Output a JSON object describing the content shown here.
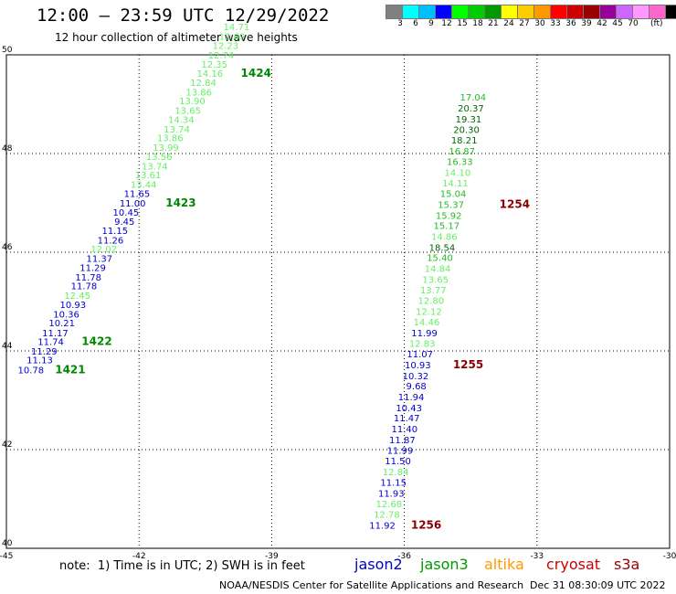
{
  "header": {
    "title": "12:00 – 23:59 UTC 12/29/2022",
    "subtitle": "12 hour collection of altimeter wave heights"
  },
  "colorbar": {
    "swatches": [
      "#808080",
      "#00ffff",
      "#00bfff",
      "#0000ff",
      "#00ff00",
      "#00cc00",
      "#009900",
      "#ffff00",
      "#ffcc00",
      "#ff9900",
      "#ff0000",
      "#cc0000",
      "#990000",
      "#990099",
      "#cc66ff",
      "#ff99ff",
      "#ff66cc",
      "#000000"
    ],
    "labels": [
      "3",
      "6",
      "9",
      "12",
      "15",
      "18",
      "21",
      "24",
      "27",
      "30",
      "33",
      "36",
      "39",
      "42",
      "45",
      "70"
    ],
    "unit": "(ft)"
  },
  "note": "note:  1) Time is in UTC; 2) SWH is in feet",
  "legend": [
    {
      "label": "jason2",
      "color": "#0000cc"
    },
    {
      "label": "jason3",
      "color": "#009900"
    },
    {
      "label": "altika",
      "color": "#ff9900"
    },
    {
      "label": "cryosat",
      "color": "#cc0000"
    },
    {
      "label": "s3a",
      "color": "#990000"
    }
  ],
  "footer": {
    "credit": "NOAA/NESDIS Center for Satellite Applications and Research",
    "timestamp": "Dec 31 08:30:09 UTC 2022"
  },
  "chart_data": {
    "type": "scatter",
    "title": "12:00 – 23:59 UTC 12/29/2022",
    "subtitle": "12 hour collection of altimeter wave heights",
    "xlim": [
      -45,
      -30
    ],
    "ylim": [
      40,
      50
    ],
    "x_ticks": [
      "-45",
      "-42",
      "-39",
      "-36",
      "-33",
      "-30"
    ],
    "y_ticks": [
      "40",
      "42",
      "44",
      "46",
      "48",
      "50"
    ],
    "grid": true,
    "tracks": [
      {
        "points": [
          {
            "x": -44.15,
            "y": 43.55,
            "v": "10.78",
            "color": "#0000cc"
          },
          {
            "x": -43.95,
            "y": 43.75,
            "v": "11.13",
            "color": "#0000cc"
          },
          {
            "x": -43.85,
            "y": 43.93,
            "v": "11.29",
            "color": "#0000cc"
          },
          {
            "x": -43.7,
            "y": 44.12,
            "v": "11.74",
            "color": "#0000cc"
          },
          {
            "x": -43.6,
            "y": 44.3,
            "v": "11.17",
            "color": "#0000cc"
          },
          {
            "x": -43.45,
            "y": 44.5,
            "v": "10.21",
            "color": "#0000cc"
          },
          {
            "x": -43.35,
            "y": 44.68,
            "v": "10.36",
            "color": "#0000cc"
          },
          {
            "x": -43.2,
            "y": 44.87,
            "v": "10.93",
            "color": "#0000cc"
          },
          {
            "x": -43.1,
            "y": 45.06,
            "v": "12.45",
            "color": "#66ee66"
          },
          {
            "x": -42.95,
            "y": 45.25,
            "v": "11.78",
            "color": "#0000cc"
          },
          {
            "x": -42.85,
            "y": 45.43,
            "v": "11.78",
            "color": "#0000cc"
          },
          {
            "x": -42.75,
            "y": 45.62,
            "v": "11.29",
            "color": "#0000cc"
          },
          {
            "x": -42.6,
            "y": 45.81,
            "v": "11.37",
            "color": "#0000cc"
          },
          {
            "x": -42.5,
            "y": 46.0,
            "v": "12.02",
            "color": "#66ee66"
          },
          {
            "x": -42.35,
            "y": 46.18,
            "v": "11.26",
            "color": "#0000cc"
          },
          {
            "x": -42.25,
            "y": 46.37,
            "v": "11.15",
            "color": "#0000cc"
          },
          {
            "x": -42.1,
            "y": 46.56,
            "v": "9.45",
            "color": "#0000cc"
          },
          {
            "x": -42.0,
            "y": 46.74,
            "v": "10.45",
            "color": "#0000cc"
          },
          {
            "x": -41.85,
            "y": 46.93,
            "v": "11.00",
            "color": "#0000cc"
          },
          {
            "x": -41.75,
            "y": 47.12,
            "v": "11.65",
            "color": "#0000cc"
          },
          {
            "x": -41.6,
            "y": 47.31,
            "v": "13.44",
            "color": "#66ee66"
          },
          {
            "x": -41.5,
            "y": 47.5,
            "v": "13.61",
            "color": "#66ee66"
          },
          {
            "x": -41.35,
            "y": 47.68,
            "v": "13.74",
            "color": "#66ee66"
          },
          {
            "x": -41.25,
            "y": 47.87,
            "v": "13.56",
            "color": "#66ee66"
          },
          {
            "x": -41.1,
            "y": 48.06,
            "v": "13.99",
            "color": "#66ee66"
          },
          {
            "x": -41.0,
            "y": 48.25,
            "v": "13.86",
            "color": "#66ee66"
          },
          {
            "x": -40.85,
            "y": 48.43,
            "v": "13.74",
            "color": "#66ee66"
          },
          {
            "x": -40.75,
            "y": 48.62,
            "v": "14.34",
            "color": "#66ee66"
          },
          {
            "x": -40.6,
            "y": 48.81,
            "v": "13.65",
            "color": "#66ee66"
          },
          {
            "x": -40.5,
            "y": 49.0,
            "v": "13.90",
            "color": "#66ee66"
          },
          {
            "x": -40.35,
            "y": 49.18,
            "v": "13.86",
            "color": "#66ee66"
          },
          {
            "x": -40.25,
            "y": 49.37,
            "v": "12.84",
            "color": "#66ee66"
          },
          {
            "x": -40.1,
            "y": 49.56,
            "v": "14.16",
            "color": "#66ee66"
          },
          {
            "x": -40.0,
            "y": 49.74,
            "v": "12.35",
            "color": "#66ee66"
          },
          {
            "x": -39.85,
            "y": 49.93,
            "v": "12.74",
            "color": "#66ee66"
          },
          {
            "x": -39.75,
            "y": 50.12,
            "v": "12.23",
            "color": "#66ee66"
          },
          {
            "x": -39.6,
            "y": 50.31,
            "v": "12.69",
            "color": "#66ee66"
          },
          {
            "x": -39.5,
            "y": 50.5,
            "v": "14.71",
            "color": "#66ee66"
          }
        ]
      },
      {
        "points": [
          {
            "x": -36.2,
            "y": 40.4,
            "v": "11.92",
            "color": "#0000cc"
          },
          {
            "x": -36.1,
            "y": 40.62,
            "v": "12.78",
            "color": "#66ee66"
          },
          {
            "x": -36.05,
            "y": 40.83,
            "v": "12.68",
            "color": "#66ee66"
          },
          {
            "x": -36.0,
            "y": 41.05,
            "v": "11.93",
            "color": "#0000cc"
          },
          {
            "x": -35.95,
            "y": 41.27,
            "v": "11.15",
            "color": "#0000cc"
          },
          {
            "x": -35.9,
            "y": 41.48,
            "v": "12.84",
            "color": "#66ee66"
          },
          {
            "x": -35.85,
            "y": 41.7,
            "v": "11.50",
            "color": "#0000cc"
          },
          {
            "x": -35.8,
            "y": 41.92,
            "v": "11.99",
            "color": "#0000cc"
          },
          {
            "x": -35.75,
            "y": 42.13,
            "v": "11.87",
            "color": "#0000cc"
          },
          {
            "x": -35.7,
            "y": 42.35,
            "v": "11.40",
            "color": "#0000cc"
          },
          {
            "x": -35.65,
            "y": 42.57,
            "v": "11.47",
            "color": "#0000cc"
          },
          {
            "x": -35.6,
            "y": 42.78,
            "v": "10.43",
            "color": "#0000cc"
          },
          {
            "x": -35.55,
            "y": 43.0,
            "v": "11.94",
            "color": "#0000cc"
          },
          {
            "x": -35.5,
            "y": 43.22,
            "v": "9.68",
            "color": "#0000cc"
          },
          {
            "x": -35.45,
            "y": 43.43,
            "v": "10.32",
            "color": "#0000cc"
          },
          {
            "x": -35.4,
            "y": 43.65,
            "v": "10.93",
            "color": "#0000cc"
          },
          {
            "x": -35.35,
            "y": 43.87,
            "v": "11.07",
            "color": "#0000cc"
          },
          {
            "x": -35.3,
            "y": 44.08,
            "v": "12.83",
            "color": "#66ee66"
          },
          {
            "x": -35.25,
            "y": 44.3,
            "v": "11.99",
            "color": "#0000cc"
          },
          {
            "x": -35.2,
            "y": 44.52,
            "v": "14.46",
            "color": "#66ee66"
          },
          {
            "x": -35.15,
            "y": 44.73,
            "v": "12.12",
            "color": "#66ee66"
          },
          {
            "x": -35.1,
            "y": 44.95,
            "v": "12.80",
            "color": "#66ee66"
          },
          {
            "x": -35.05,
            "y": 45.17,
            "v": "13.77",
            "color": "#66ee66"
          },
          {
            "x": -35.0,
            "y": 45.38,
            "v": "13.65",
            "color": "#66ee66"
          },
          {
            "x": -34.95,
            "y": 45.6,
            "v": "14.84",
            "color": "#66ee66"
          },
          {
            "x": -34.9,
            "y": 45.82,
            "v": "15.40",
            "color": "#22bb22"
          },
          {
            "x": -34.85,
            "y": 46.03,
            "v": "18.54",
            "color": "#006600"
          },
          {
            "x": -34.8,
            "y": 46.25,
            "v": "14.86",
            "color": "#66ee66"
          },
          {
            "x": -34.75,
            "y": 46.47,
            "v": "15.17",
            "color": "#22bb22"
          },
          {
            "x": -34.7,
            "y": 46.68,
            "v": "15.92",
            "color": "#22bb22"
          },
          {
            "x": -34.65,
            "y": 46.9,
            "v": "15.37",
            "color": "#22bb22"
          },
          {
            "x": -34.6,
            "y": 47.12,
            "v": "15.04",
            "color": "#22bb22"
          },
          {
            "x": -34.55,
            "y": 47.33,
            "v": "14.11",
            "color": "#66ee66"
          },
          {
            "x": -34.5,
            "y": 47.55,
            "v": "14.10",
            "color": "#66ee66"
          },
          {
            "x": -34.45,
            "y": 47.77,
            "v": "16.33",
            "color": "#22bb22"
          },
          {
            "x": -34.4,
            "y": 47.98,
            "v": "16.87",
            "color": "#22bb22"
          },
          {
            "x": -34.35,
            "y": 48.2,
            "v": "18.21",
            "color": "#006600"
          },
          {
            "x": -34.3,
            "y": 48.42,
            "v": "20.30",
            "color": "#006600"
          },
          {
            "x": -34.25,
            "y": 48.63,
            "v": "19.31",
            "color": "#006600"
          },
          {
            "x": -34.2,
            "y": 48.85,
            "v": "20.37",
            "color": "#006600"
          },
          {
            "x": -34.15,
            "y": 49.07,
            "v": "17.04",
            "color": "#22bb22"
          }
        ]
      }
    ],
    "time_labels": [
      {
        "text": "1421",
        "x": -43.9,
        "y": 43.55,
        "color": "#008800"
      },
      {
        "text": "1422",
        "x": -43.3,
        "y": 44.12,
        "color": "#008800"
      },
      {
        "text": "1423",
        "x": -41.4,
        "y": 46.93,
        "color": "#008800"
      },
      {
        "text": "1424",
        "x": -39.7,
        "y": 49.56,
        "color": "#008800"
      },
      {
        "text": "1254",
        "x": -33.85,
        "y": 46.9,
        "color": "#880000"
      },
      {
        "text": "1255",
        "x": -34.9,
        "y": 43.65,
        "color": "#880000"
      },
      {
        "text": "1256",
        "x": -35.85,
        "y": 40.4,
        "color": "#880000"
      }
    ]
  }
}
